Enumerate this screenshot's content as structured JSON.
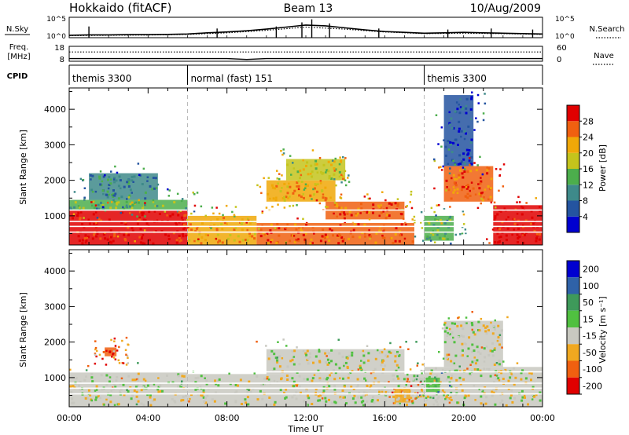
{
  "chart_data": [
    {
      "type": "line",
      "panel": "noise",
      "title": "Hokkaido (fitACF)",
      "beam_label": "Beam 13",
      "date_label": "10/Aug/2009",
      "left_axis_label": "N.Sky",
      "left_ticks": [
        "10^5",
        "10^0"
      ],
      "right_axis_label": "N.Search",
      "right_ticks": [
        "10^5",
        "10^0"
      ],
      "right_line_style": "dotted",
      "series": [
        {
          "name": "N.Sky",
          "style": "solid",
          "x_hours": [
            0,
            1,
            2,
            3,
            4,
            5,
            6,
            7,
            8,
            9,
            10,
            11,
            12,
            13,
            14,
            15,
            16,
            17,
            18,
            19,
            20,
            21,
            22,
            23,
            24
          ],
          "y_fraction": [
            0.12,
            0.14,
            0.14,
            0.15,
            0.15,
            0.16,
            0.18,
            0.24,
            0.28,
            0.34,
            0.42,
            0.52,
            0.62,
            0.58,
            0.48,
            0.38,
            0.3,
            0.26,
            0.22,
            0.24,
            0.26,
            0.24,
            0.22,
            0.2,
            0.18
          ]
        },
        {
          "name": "N.Search",
          "style": "dotted",
          "x_hours": [
            0,
            2,
            4,
            6,
            8,
            10,
            12,
            14,
            16,
            18,
            20,
            22,
            24
          ],
          "y_fraction": [
            0.1,
            0.12,
            0.13,
            0.16,
            0.24,
            0.36,
            0.52,
            0.42,
            0.28,
            0.2,
            0.22,
            0.2,
            0.16
          ]
        }
      ],
      "bursts_x_hours": [
        1.0,
        7.5,
        10.5,
        11.8,
        12.3,
        13.2,
        15.7,
        19.2,
        21.4,
        23.5
      ],
      "bursts_y_fraction": [
        0.55,
        0.45,
        0.55,
        0.75,
        0.9,
        0.7,
        0.45,
        0.4,
        0.45,
        0.4
      ]
    },
    {
      "type": "line",
      "panel": "frequency",
      "left_axis_label_lines": [
        "Freq.",
        "[MHz]"
      ],
      "left_ticks": [
        "18",
        "8"
      ],
      "right_axis_label": "Nave",
      "right_ticks": [
        "60",
        "0"
      ],
      "series": [
        {
          "name": "Freq.",
          "style": "solid",
          "x_hours": [
            0,
            6,
            8,
            9,
            10,
            12,
            24
          ],
          "y_fraction": [
            0.18,
            0.18,
            0.18,
            0.12,
            0.18,
            0.18,
            0.18
          ]
        },
        {
          "name": "Nave",
          "style": "dotted",
          "x_hours": [
            0,
            24
          ],
          "y_fraction": [
            0.62,
            0.62
          ]
        }
      ]
    },
    {
      "type": "table",
      "panel": "cpid",
      "label": "CPID",
      "segments": [
        {
          "start_hour": 0,
          "label": "themis 3300"
        },
        {
          "start_hour": 6,
          "label": "normal (fast) 151"
        },
        {
          "start_hour": 18,
          "label": "themis 3300"
        }
      ]
    },
    {
      "type": "heatmap",
      "panel": "power",
      "ylabel": "Slant Range [km]",
      "ylim": [
        180,
        4600
      ],
      "yticks": [
        1000,
        2000,
        3000,
        4000
      ],
      "xlim": [
        0,
        24
      ],
      "colorbar_label": "Power [dB]",
      "colorbar_ticks": [
        4,
        8,
        12,
        16,
        20,
        24,
        28
      ],
      "colorbar_range": [
        0,
        32
      ],
      "colorbar_colors": [
        "#0000d0",
        "#2454a0",
        "#3e8a8a",
        "#4cae4c",
        "#c4c41c",
        "#f0a808",
        "#f06010",
        "#e00000"
      ],
      "regions": [
        {
          "x": [
            0,
            6
          ],
          "y": [
            180,
            1150
          ],
          "level": 7
        },
        {
          "x": [
            0,
            6
          ],
          "y": [
            1150,
            1450
          ],
          "level": 3
        },
        {
          "x": [
            1,
            4.5
          ],
          "y": [
            1450,
            2200
          ],
          "level": 2
        },
        {
          "x": [
            6,
            9.5
          ],
          "y": [
            180,
            1000
          ],
          "level": 5
        },
        {
          "x": [
            9.5,
            17.5
          ],
          "y": [
            180,
            800
          ],
          "level": 6
        },
        {
          "x": [
            10,
            13.5
          ],
          "y": [
            1400,
            2000
          ],
          "level": 5
        },
        {
          "x": [
            13,
            17
          ],
          "y": [
            900,
            1400
          ],
          "level": 6
        },
        {
          "x": [
            11,
            14
          ],
          "y": [
            2000,
            2600
          ],
          "level": 4
        },
        {
          "x": [
            18,
            19.5
          ],
          "y": [
            300,
            1000
          ],
          "level": 3
        },
        {
          "x": [
            21.5,
            24
          ],
          "y": [
            180,
            1300
          ],
          "level": 7
        },
        {
          "x": [
            19,
            21.5
          ],
          "y": [
            1400,
            2400
          ],
          "level": 6
        },
        {
          "x": [
            19,
            20.5
          ],
          "y": [
            2400,
            4400
          ],
          "level": 1
        }
      ]
    },
    {
      "type": "heatmap",
      "panel": "velocity",
      "ylabel": "Slant Range [km]",
      "ylim": [
        180,
        4600
      ],
      "yticks": [
        1000,
        2000,
        3000,
        4000
      ],
      "xlim": [
        0,
        24
      ],
      "xticks": [
        "00:00",
        "04:00",
        "08:00",
        "12:00",
        "16:00",
        "20:00",
        "00:00"
      ],
      "xlabel": "Time UT",
      "colorbar_label": "Velocity [m s⁻¹]",
      "colorbar_ticks": [
        200,
        100,
        50,
        15,
        -15,
        -50,
        -100,
        -200
      ],
      "colorbar_colors": [
        "#0000d0",
        "#2f62a8",
        "#3e9a5a",
        "#50c040",
        "#c8c8c0",
        "#f0a820",
        "#f06010",
        "#e00000"
      ],
      "regions": [
        {
          "x": [
            0,
            6
          ],
          "y": [
            180,
            1150
          ],
          "level": 4
        },
        {
          "x": [
            6,
            18
          ],
          "y": [
            180,
            1100
          ],
          "level": 4
        },
        {
          "x": [
            10,
            17
          ],
          "y": [
            1100,
            1800
          ],
          "level": 4
        },
        {
          "x": [
            18,
            24
          ],
          "y": [
            180,
            1300
          ],
          "level": 4
        },
        {
          "x": [
            19,
            22
          ],
          "y": [
            1300,
            2600
          ],
          "level": 4
        },
        {
          "x": [
            1.8,
            2.4
          ],
          "y": [
            1600,
            1850
          ],
          "level": 6
        },
        {
          "x": [
            18.1,
            18.8
          ],
          "y": [
            600,
            1000
          ],
          "level": 3
        },
        {
          "x": [
            16.5,
            17.3
          ],
          "y": [
            300,
            700
          ],
          "level": 5
        }
      ]
    }
  ]
}
